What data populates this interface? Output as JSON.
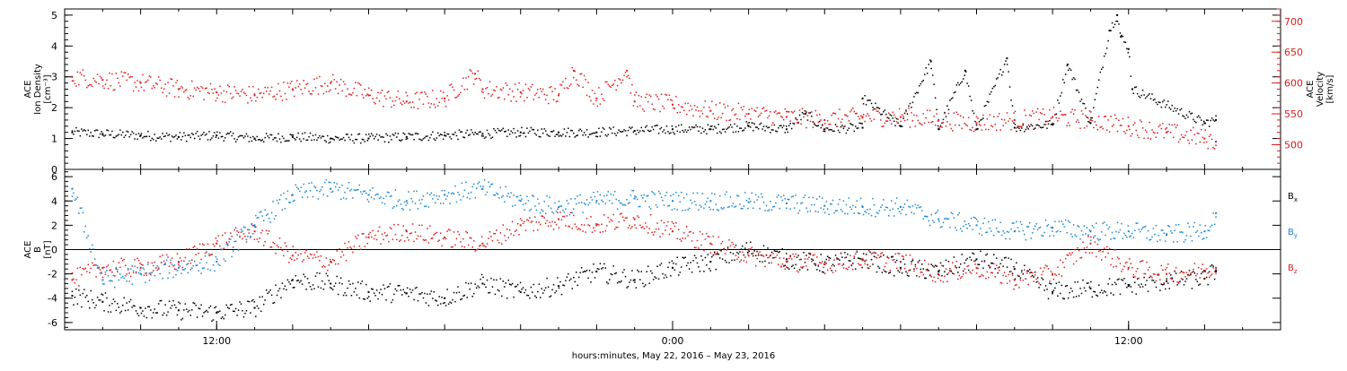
{
  "footer": {
    "x_axis_label": "hours:minutes, May 22, 2016 – May 23, 2016"
  },
  "colors": {
    "black": "#000000",
    "red": "#dd1c1c",
    "blue": "#1a86d0",
    "frame": "#000000"
  },
  "chart_data": [
    {
      "type": "scatter",
      "panel": "top",
      "ylabel_lines": [
        "ACE",
        "Ion Density"
      ],
      "ylabel_unit": "[cm⁻³]",
      "ylim": [
        0,
        5.2
      ],
      "yticks": [
        0,
        1,
        2,
        3,
        4,
        5
      ],
      "y2label_lines": [
        "ACE",
        "Velocity"
      ],
      "y2label_unit": "[km/s]",
      "y2lim": [
        460,
        720
      ],
      "y2ticks": [
        500,
        550,
        600,
        650,
        700
      ],
      "xlim_hours": [
        8,
        40
      ],
      "xticks": [
        {
          "hour": 12,
          "label": "12:00"
        },
        {
          "hour": 24,
          "label": "0:00"
        },
        {
          "hour": 36,
          "label": "12:00"
        }
      ],
      "series": [
        {
          "axis": "left",
          "color": "black",
          "points": [
            [
              8.2,
              1.2
            ],
            [
              9,
              1.15
            ],
            [
              10,
              1.1
            ],
            [
              11,
              1.05
            ],
            [
              12,
              1.1
            ],
            [
              13,
              1.0
            ],
            [
              14,
              1.05
            ],
            [
              15,
              1.0
            ],
            [
              16,
              1.0
            ],
            [
              17,
              1.05
            ],
            [
              18,
              1.1
            ],
            [
              19,
              1.15
            ],
            [
              20,
              1.2
            ],
            [
              21,
              1.2
            ],
            [
              22,
              1.2
            ],
            [
              23,
              1.25
            ],
            [
              24,
              1.3
            ],
            [
              25,
              1.3
            ],
            [
              26,
              1.4
            ],
            [
              27,
              1.3
            ],
            [
              28,
              1.3
            ],
            [
              29,
              1.35
            ],
            [
              30,
              1.4
            ],
            [
              31,
              1.3
            ],
            [
              32,
              1.3
            ],
            [
              33,
              1.35
            ],
            [
              34,
              1.45
            ],
            [
              35,
              1.5
            ],
            [
              27.5,
              1.8
            ],
            [
              29,
              2.3
            ],
            [
              30.8,
              3.5
            ],
            [
              31.7,
              3.2
            ],
            [
              32.8,
              3.6
            ],
            [
              34.4,
              3.4
            ],
            [
              35.5,
              4.5
            ],
            [
              35.7,
              5.0
            ],
            [
              35.8,
              4.3
            ],
            [
              36,
              3.9
            ],
            [
              36.1,
              2.6
            ],
            [
              38,
              1.5
            ],
            [
              38.3,
              1.6
            ]
          ]
        },
        {
          "axis": "right",
          "color": "red",
          "points": [
            [
              8.2,
              610
            ],
            [
              9,
              605
            ],
            [
              10,
              600
            ],
            [
              11,
              590
            ],
            [
              12,
              585
            ],
            [
              13,
              580
            ],
            [
              14,
              590
            ],
            [
              15,
              600
            ],
            [
              16,
              580
            ],
            [
              17,
              570
            ],
            [
              18,
              575
            ],
            [
              19,
              590
            ],
            [
              20,
              585
            ],
            [
              21,
              580
            ],
            [
              22,
              575
            ],
            [
              23,
              570
            ],
            [
              24,
              565
            ],
            [
              25,
              555
            ],
            [
              26,
              550
            ],
            [
              27,
              545
            ],
            [
              28,
              540
            ],
            [
              29,
              545
            ],
            [
              30,
              545
            ],
            [
              31,
              540
            ],
            [
              32,
              535
            ],
            [
              33,
              540
            ],
            [
              34,
              545
            ],
            [
              35,
              540
            ],
            [
              36,
              530
            ],
            [
              37,
              520
            ],
            [
              38,
              510
            ],
            [
              38.3,
              505
            ],
            [
              18.8,
              615
            ],
            [
              21.4,
              620
            ],
            [
              22.8,
              620
            ]
          ]
        }
      ]
    },
    {
      "type": "scatter",
      "panel": "bottom",
      "ylabel_lines": [
        "ACE",
        "B"
      ],
      "ylabel_unit": "[nT]",
      "ylim": [
        -6.6,
        6.6
      ],
      "yticks": [
        -6,
        -4,
        -2,
        0,
        2,
        4,
        6
      ],
      "zero_line": true,
      "xlim_hours": [
        8,
        40
      ],
      "xticks": [
        {
          "hour": 12,
          "label": "12:00"
        },
        {
          "hour": 24,
          "label": "0:00"
        },
        {
          "hour": 36,
          "label": "12:00"
        }
      ],
      "series": [
        {
          "name": "B",
          "subscript": "x",
          "color": "black",
          "points": [
            [
              8.2,
              -3.8
            ],
            [
              9,
              -4.3
            ],
            [
              10,
              -4.8
            ],
            [
              11,
              -5.0
            ],
            [
              12,
              -5.2
            ],
            [
              13,
              -4.8
            ],
            [
              14,
              -2.5
            ],
            [
              15,
              -2.8
            ],
            [
              16,
              -3.5
            ],
            [
              17,
              -3.6
            ],
            [
              18,
              -4.0
            ],
            [
              19,
              -2.8
            ],
            [
              20,
              -3.5
            ],
            [
              21,
              -3.0
            ],
            [
              22,
              -1.8
            ],
            [
              23,
              -2.5
            ],
            [
              24,
              -1.5
            ],
            [
              25,
              -1.0
            ],
            [
              26,
              0.0
            ],
            [
              27,
              -0.8
            ],
            [
              28,
              -1.2
            ],
            [
              29,
              -0.8
            ],
            [
              30,
              -1.5
            ],
            [
              31,
              -1.8
            ],
            [
              32,
              -0.8
            ],
            [
              33,
              -1.6
            ],
            [
              34,
              -3.5
            ],
            [
              35,
              -3.2
            ],
            [
              36,
              -3.0
            ],
            [
              37,
              -2.6
            ],
            [
              38,
              -2.4
            ],
            [
              38.3,
              -1.8
            ]
          ]
        },
        {
          "name": "B",
          "subscript": "y",
          "color": "blue",
          "points": [
            [
              8.2,
              5.0
            ],
            [
              9,
              -2.5
            ],
            [
              10,
              -2.0
            ],
            [
              11,
              -1.5
            ],
            [
              12,
              -1.0
            ],
            [
              13,
              2.0
            ],
            [
              14,
              4.5
            ],
            [
              15,
              5.0
            ],
            [
              16,
              4.5
            ],
            [
              17,
              4.0
            ],
            [
              18,
              4.5
            ],
            [
              19,
              5.0
            ],
            [
              20,
              4.0
            ],
            [
              21,
              3.5
            ],
            [
              22,
              4.0
            ],
            [
              23,
              4.2
            ],
            [
              24,
              4.0
            ],
            [
              25,
              4.0
            ],
            [
              26,
              3.9
            ],
            [
              27,
              3.8
            ],
            [
              28,
              3.6
            ],
            [
              29,
              3.5
            ],
            [
              30,
              3.5
            ],
            [
              31,
              2.5
            ],
            [
              32,
              2.0
            ],
            [
              33,
              1.5
            ],
            [
              34,
              1.8
            ],
            [
              35,
              1.5
            ],
            [
              36,
              1.5
            ],
            [
              37,
              1.2
            ],
            [
              38,
              1.5
            ],
            [
              38.3,
              3.0
            ]
          ]
        },
        {
          "name": "B",
          "subscript": "z",
          "color": "red",
          "points": [
            [
              8.2,
              -2.5
            ],
            [
              9,
              -1.5
            ],
            [
              10,
              -1.5
            ],
            [
              11,
              -1.0
            ],
            [
              12,
              0.5
            ],
            [
              13,
              1.5
            ],
            [
              14,
              -0.5
            ],
            [
              15,
              -1.0
            ],
            [
              16,
              1.0
            ],
            [
              17,
              1.5
            ],
            [
              18,
              1.0
            ],
            [
              19,
              0.5
            ],
            [
              20,
              2.0
            ],
            [
              21,
              2.5
            ],
            [
              22,
              2.0
            ],
            [
              23,
              2.5
            ],
            [
              24,
              1.5
            ],
            [
              25,
              0.5
            ],
            [
              26,
              -0.5
            ],
            [
              27,
              -1.0
            ],
            [
              28,
              -1.2
            ],
            [
              29,
              -0.8
            ],
            [
              30,
              -1.0
            ],
            [
              31,
              -2.0
            ],
            [
              32,
              -1.5
            ],
            [
              33,
              -2.5
            ],
            [
              34,
              -2.0
            ],
            [
              35,
              0.5
            ],
            [
              36,
              -1.5
            ],
            [
              37,
              -2.0
            ],
            [
              38,
              -1.8
            ],
            [
              38.3,
              -1.5
            ]
          ]
        }
      ]
    }
  ]
}
